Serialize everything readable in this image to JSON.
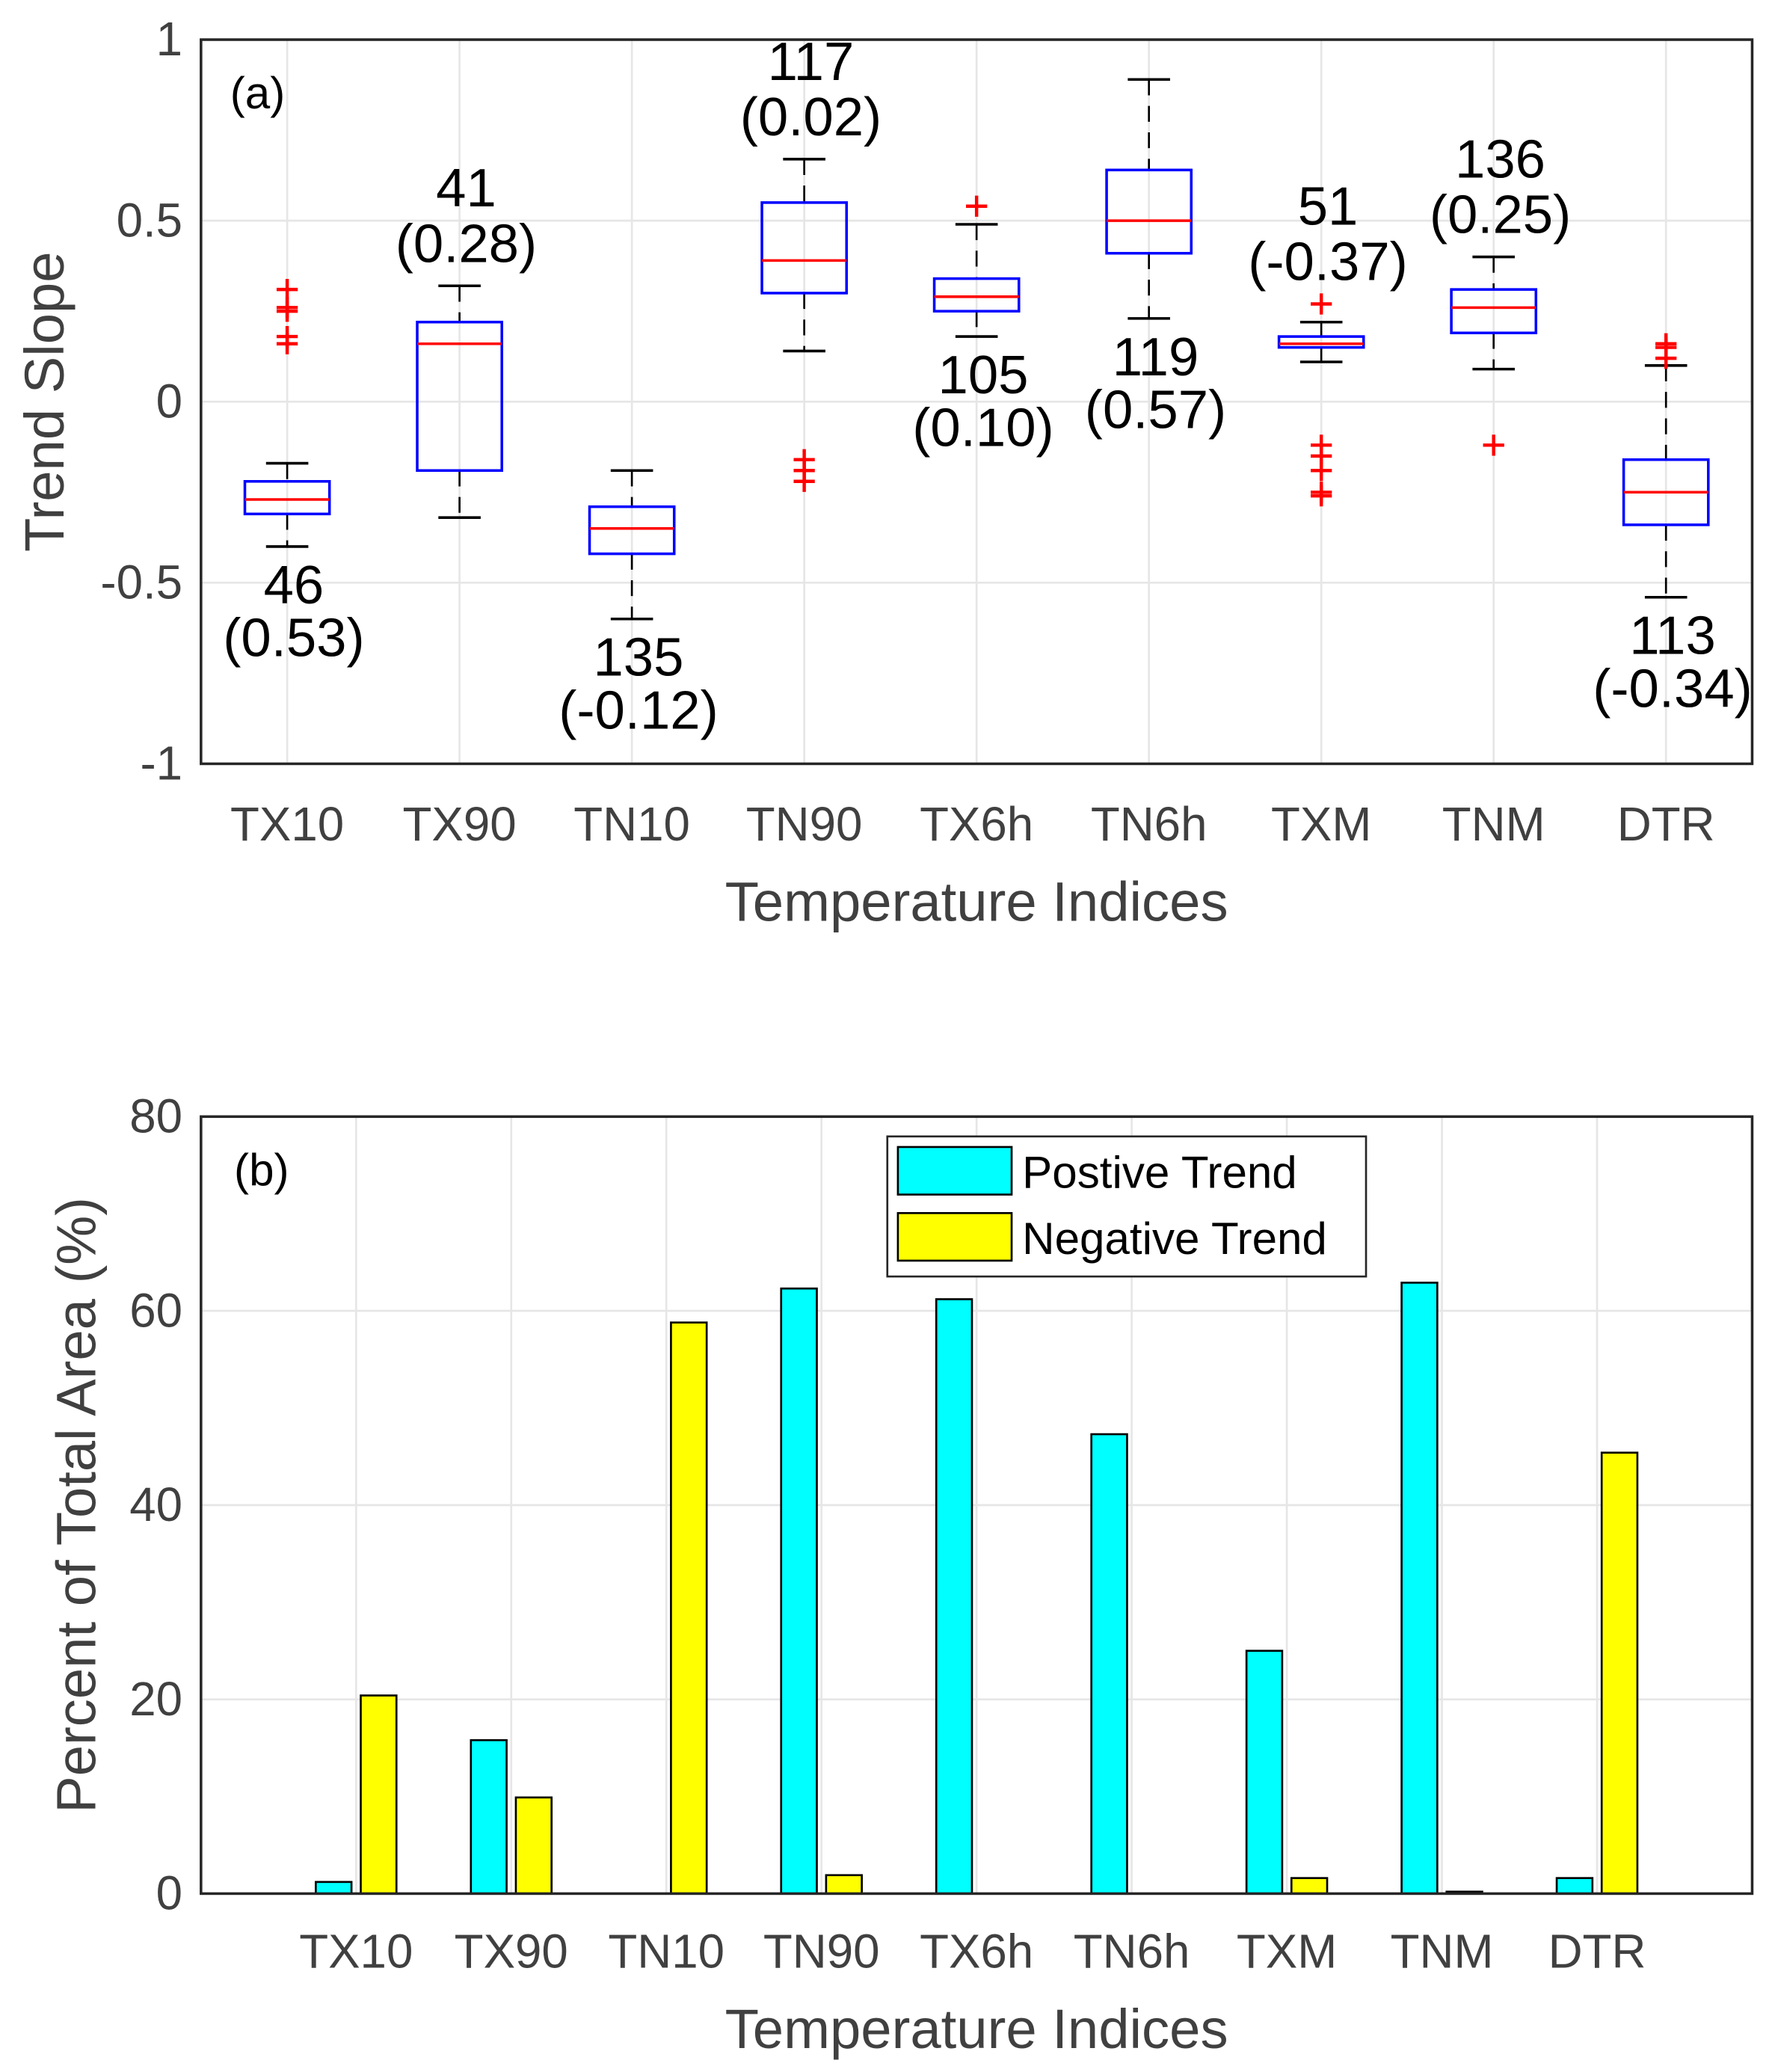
{
  "chart_data": [
    {
      "type": "box",
      "panel_label": "(a)",
      "xlabel": "Temperature Indices",
      "ylabel": "Trend Slope",
      "ylim": [
        -1,
        1
      ],
      "yticks": [
        -1,
        -0.5,
        0,
        0.5,
        1
      ],
      "ytick_labels": [
        "-1",
        "-0.5",
        "0",
        "0.5",
        "1"
      ],
      "grid": true,
      "categories": [
        "TX10",
        "TX90",
        "TN10",
        "TN90",
        "TX6h",
        "TN6h",
        "TXM",
        "TNM",
        "DTR"
      ],
      "boxes": [
        {
          "whisker_low": -0.4,
          "q1": -0.31,
          "median": -0.27,
          "q3": -0.22,
          "whisker_high": -0.17,
          "outliers": [
            0.16,
            0.18,
            0.25,
            0.26,
            0.31
          ],
          "count": "46",
          "corr": "(0.53)",
          "label_side": "below"
        },
        {
          "whisker_low": -0.32,
          "q1": -0.19,
          "median": 0.16,
          "q3": 0.22,
          "whisker_high": 0.32,
          "outliers": [],
          "count": "41",
          "corr": "(0.28)",
          "label_side": "above"
        },
        {
          "whisker_low": -0.6,
          "q1": -0.42,
          "median": -0.35,
          "q3": -0.29,
          "whisker_high": -0.19,
          "outliers": [],
          "count": "135",
          "corr": "(-0.12)",
          "label_side": "below"
        },
        {
          "whisker_low": 0.14,
          "q1": 0.3,
          "median": 0.39,
          "q3": 0.55,
          "whisker_high": 0.67,
          "outliers": [
            -0.16,
            -0.19,
            -0.22
          ],
          "count": "117",
          "corr": "(0.02)",
          "label_side": "above"
        },
        {
          "whisker_low": 0.18,
          "q1": 0.25,
          "median": 0.29,
          "q3": 0.34,
          "whisker_high": 0.49,
          "outliers": [
            0.54
          ],
          "count": "105",
          "corr": "(0.10)",
          "label_side": "below"
        },
        {
          "whisker_low": 0.23,
          "q1": 0.41,
          "median": 0.5,
          "q3": 0.64,
          "whisker_high": 0.89,
          "outliers": [],
          "count": "119",
          "corr": "(0.57)",
          "label_side": "below"
        },
        {
          "whisker_low": 0.11,
          "q1": 0.15,
          "median": 0.16,
          "q3": 0.18,
          "whisker_high": 0.22,
          "outliers": [
            0.27,
            -0.12,
            -0.15,
            -0.19,
            -0.25,
            -0.26
          ],
          "count": "51",
          "corr": "(-0.37)",
          "label_side": "above"
        },
        {
          "whisker_low": 0.09,
          "q1": 0.19,
          "median": 0.26,
          "q3": 0.31,
          "whisker_high": 0.4,
          "outliers": [
            -0.12
          ],
          "count": "136",
          "corr": "(0.25)",
          "label_side": "above"
        },
        {
          "whisker_low": -0.54,
          "q1": -0.34,
          "median": -0.25,
          "q3": -0.16,
          "whisker_high": 0.1,
          "outliers": [
            0.12,
            0.15,
            0.16
          ],
          "count": "113",
          "corr": "(-0.34)",
          "label_side": "below"
        }
      ],
      "colors": {
        "box": "#0000ff",
        "median": "#ff0000",
        "whisker": "#000000",
        "outlier": "#ff0000"
      }
    },
    {
      "type": "bar",
      "panel_label": "(b)",
      "xlabel": "Temperature Indices",
      "ylabel": "Percent of Total Area (%)",
      "ylim": [
        0,
        80
      ],
      "xlim": [
        0,
        10
      ],
      "yticks": [
        0,
        20,
        40,
        60,
        80
      ],
      "ytick_labels": [
        "0",
        "20",
        "40",
        "60",
        "80"
      ],
      "grid": true,
      "legend_position": "top-center",
      "categories": [
        "TX10",
        "TX90",
        "TN10",
        "TN90",
        "TX6h",
        "TN6h",
        "TXM",
        "TNM",
        "DTR"
      ],
      "series": [
        {
          "name": "Postive Trend",
          "color": "#00ffff",
          "values": [
            1.2,
            15.8,
            0,
            62.3,
            61.2,
            47.3,
            25.0,
            62.9,
            1.6
          ]
        },
        {
          "name": "Negative Trend",
          "color": "#ffff00",
          "values": [
            20.4,
            9.9,
            58.8,
            1.9,
            0,
            0,
            1.6,
            0.2,
            45.4
          ]
        }
      ]
    }
  ]
}
